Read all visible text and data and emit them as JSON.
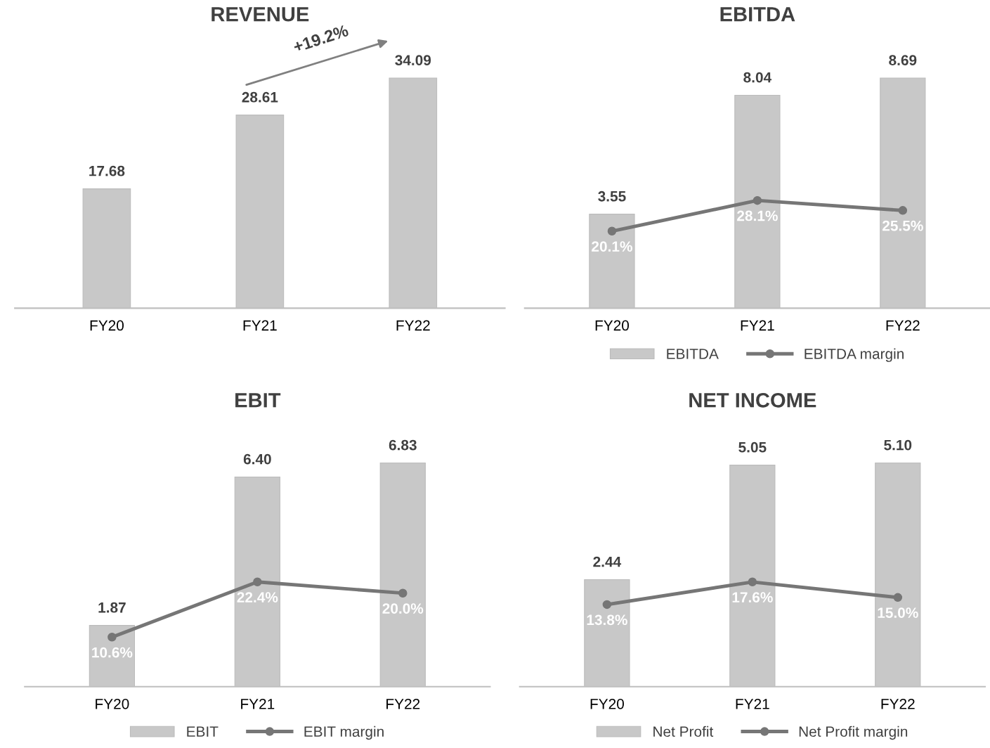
{
  "chart_data": [
    {
      "type": "bar",
      "title": "REVENUE",
      "categories": [
        "FY20",
        "FY21",
        "FY22"
      ],
      "tick_labels": "x",
      "legend": false,
      "annotations": [
        "+19.2%"
      ],
      "series": [
        {
          "color": "#c8c8c8",
          "values": [
            17.68,
            28.61,
            34.09
          ],
          "value_labels": [
            "17.68",
            "28.61",
            "34.09"
          ]
        }
      ]
    },
    {
      "type": "bar",
      "title": "EBITDA",
      "categories": [
        "FY20",
        "FY21",
        "FY22"
      ],
      "tick_labels": "x",
      "legend": "bottom",
      "marker": "circle",
      "series": [
        {
          "name": "EBITDA",
          "color": "#c8c8c8",
          "values": [
            3.55,
            8.04,
            8.69
          ],
          "value_labels": [
            "3.55",
            "8.04",
            "8.69"
          ]
        },
        {
          "type": "line",
          "name": "EBITDA margin",
          "axis": "y2",
          "color": "#767676",
          "values": [
            20.1,
            28.1,
            25.5
          ],
          "value_labels": [
            "20.1%",
            "28.1%",
            "25.5%"
          ]
        }
      ]
    },
    {
      "type": "bar",
      "title": "EBIT",
      "categories": [
        "FY20",
        "FY21",
        "FY22"
      ],
      "tick_labels": "x",
      "legend": "bottom",
      "marker": "circle",
      "series": [
        {
          "name": "EBIT",
          "color": "#c8c8c8",
          "values": [
            1.87,
            6.4,
            6.83
          ],
          "value_labels": [
            "1.87",
            "6.40",
            "6.83"
          ]
        },
        {
          "type": "line",
          "name": "EBIT margin",
          "axis": "y2",
          "color": "#767676",
          "values": [
            10.6,
            22.4,
            20.0
          ],
          "value_labels": [
            "10.6%",
            "22.4%",
            "20.0%"
          ]
        }
      ]
    },
    {
      "type": "bar",
      "title": "NET INCOME",
      "categories": [
        "FY20",
        "FY21",
        "FY22"
      ],
      "tick_labels": "x",
      "legend": "bottom",
      "marker": "circle",
      "series": [
        {
          "name": "Net Profit",
          "color": "#c8c8c8",
          "values": [
            2.44,
            5.05,
            5.1
          ],
          "value_labels": [
            "2.44",
            "5.05",
            "5.10"
          ]
        },
        {
          "type": "line",
          "name": "Net Profit margin",
          "axis": "y2",
          "color": "#767676",
          "values": [
            13.8,
            17.6,
            15.0
          ],
          "value_labels": [
            "13.8%",
            "17.6%",
            "15.0%"
          ]
        }
      ]
    }
  ]
}
